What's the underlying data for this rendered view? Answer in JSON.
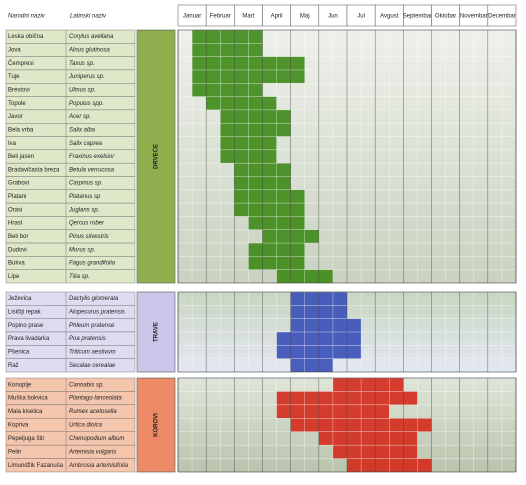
{
  "header": {
    "common": "Narodni naziv",
    "latin": "Latinski naziv",
    "months": [
      "Januar",
      "Februar",
      "Mart",
      "April",
      "Maj",
      "Jun",
      "Jul",
      "Avgust",
      "Septembar",
      "Oktobar",
      "Novembar",
      "Decembar"
    ]
  },
  "groups": [
    {
      "label": "DRVEĆE",
      "label_color": "#8faf4e",
      "row_color": "#dfe7c9",
      "bg": [
        "#c9d2c0",
        "#eef0ea"
      ],
      "mark_color": "#3d8a17",
      "rows": [
        {
          "common": "Leska obična",
          "latin": "Corylus avellana",
          "season": [
            1,
            5
          ]
        },
        {
          "common": "Jova",
          "latin": "Alnus glutinosa",
          "season": [
            1,
            5
          ]
        },
        {
          "common": "Čempresi",
          "latin": "Taxus sp.",
          "season": [
            1,
            8
          ]
        },
        {
          "common": "Tuje",
          "latin": "Juniperus sp.",
          "season": [
            1,
            8
          ]
        },
        {
          "common": "Brestovi",
          "latin": "Ulmus sp.",
          "season": [
            1,
            5
          ]
        },
        {
          "common": "Topole",
          "latin": "Populus spp.",
          "season": [
            2,
            6
          ]
        },
        {
          "common": "Javor",
          "latin": "Acer sp.",
          "season": [
            3,
            7
          ]
        },
        {
          "common": "Bela vrba",
          "latin": "Salix alba",
          "season": [
            3,
            7
          ]
        },
        {
          "common": "Iva",
          "latin": "Salix caprea",
          "season": [
            3,
            6
          ]
        },
        {
          "common": "Beli jasen",
          "latin": "Fraxinus exelsior",
          "season": [
            3,
            6
          ]
        },
        {
          "common": "Bradavičasta breza",
          "latin": "Betula verrucosa",
          "season": [
            4,
            7
          ]
        },
        {
          "common": "Grabovi",
          "latin": "Carpinus sp.",
          "season": [
            4,
            7
          ]
        },
        {
          "common": "Platani",
          "latin": "Platanus sp",
          "season": [
            4,
            8
          ]
        },
        {
          "common": "Orasi",
          "latin": "Juglans sp.",
          "season": [
            4,
            8
          ]
        },
        {
          "common": "Hrast",
          "latin": "Qercus rober",
          "season": [
            5,
            8
          ]
        },
        {
          "common": "Beli bor",
          "latin": "Pinus silvestris",
          "season": [
            6,
            9
          ]
        },
        {
          "common": "Dudovi",
          "latin": "Morus sp.",
          "season": [
            5,
            8
          ]
        },
        {
          "common": "Bukva",
          "latin": "Fagus grandifolia",
          "season": [
            5,
            8
          ]
        },
        {
          "common": "Lipe",
          "latin": "Tilia sp.",
          "season": [
            7,
            10
          ]
        }
      ]
    },
    {
      "label": "TRAVE",
      "label_color": "#c9c6ea",
      "row_color": "#dedcf1",
      "bg": [
        "#e4e8f4",
        "#c8d6c0"
      ],
      "mark_color": "#3a4fb8",
      "rows": [
        {
          "common": "Ježevica",
          "latin": "Dactylis glomerata",
          "season": [
            8,
            11
          ]
        },
        {
          "common": "Lisičiji repak",
          "latin": "Alopecurus pratensis",
          "season": [
            8,
            11
          ]
        },
        {
          "common": "Popino prase",
          "latin": "Phleum pratense",
          "season": [
            8,
            12
          ]
        },
        {
          "common": "Prava livadarka",
          "latin": "Poa pratensis",
          "season": [
            7,
            12
          ]
        },
        {
          "common": "Pšenica",
          "latin": "Triticum aestivum",
          "season": [
            7,
            12
          ]
        },
        {
          "common": "Raž",
          "latin": "Secalae cerealae",
          "season": [
            8,
            10
          ]
        }
      ]
    },
    {
      "label": "KOROVI",
      "label_color": "#ec8a66",
      "row_color": "#f5c6ae",
      "bg": [
        "#b9c4ad",
        "#dfe5d8"
      ],
      "mark_color": "#d42a1c",
      "rows": [
        {
          "common": "Konoplje",
          "latin": "Cannabis sp.",
          "season": [
            11,
            15
          ]
        },
        {
          "common": "Muška bokvica",
          "latin": "Plantago lanceolata",
          "season": [
            7,
            16
          ]
        },
        {
          "common": "Mala kiselica",
          "latin": "Rumex acetosella",
          "season": [
            7,
            14
          ]
        },
        {
          "common": "Kopriva",
          "latin": "Urtica dioica",
          "season": [
            8,
            17
          ]
        },
        {
          "common": "Pepeljuga štir",
          "latin": "Chenopodium album",
          "season": [
            10,
            16
          ]
        },
        {
          "common": "Pelin",
          "latin": "Artemisia vulgaris",
          "season": [
            11,
            16
          ]
        },
        {
          "common": "Limundžik Fazanuša",
          "latin": "Ambrosia artemisifolia",
          "season": [
            12,
            17
          ]
        }
      ]
    }
  ]
}
